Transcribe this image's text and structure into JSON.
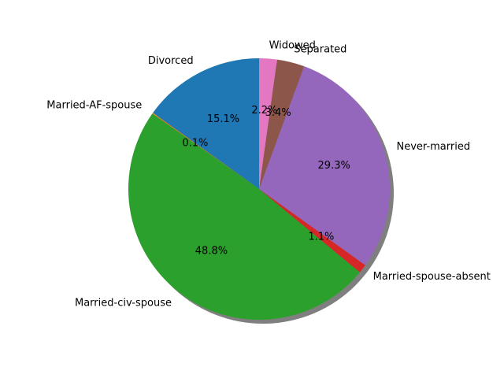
{
  "chart_data": {
    "type": "pie",
    "title": "",
    "shadow": true,
    "start_angle_deg": 90,
    "direction": "counterclockwise",
    "slices": [
      {
        "label": "Divorced",
        "value": 15.1,
        "pct_label": "15.1%",
        "color": "#1f77b4"
      },
      {
        "label": "Married-AF-spouse",
        "value": 0.1,
        "pct_label": "0.1%",
        "color": "#ff7f0e"
      },
      {
        "label": "Married-civ-spouse",
        "value": 48.8,
        "pct_label": "48.8%",
        "color": "#2ca02c"
      },
      {
        "label": "Married-spouse-absent",
        "value": 1.1,
        "pct_label": "1.1%",
        "color": "#d62728"
      },
      {
        "label": "Never-married",
        "value": 29.3,
        "pct_label": "29.3%",
        "color": "#9467bd"
      },
      {
        "label": "Separated",
        "value": 3.4,
        "pct_label": "3.4%",
        "color": "#8c564b"
      },
      {
        "label": "Widowed",
        "value": 2.2,
        "pct_label": "2.2%",
        "color": "#e377c2"
      }
    ]
  }
}
